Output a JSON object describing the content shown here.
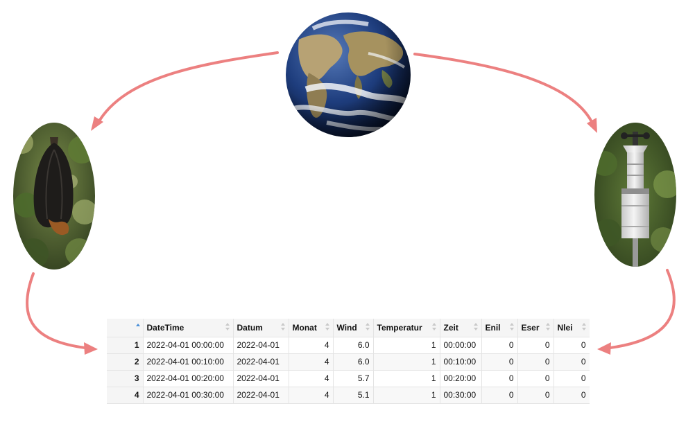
{
  "colors": {
    "arrow": "#ec8080",
    "ocean": "#1c3a78",
    "foliage": "#4b6630",
    "header_bg": "#f5f5f5",
    "grid": "#e4e4e4",
    "sort_active": "#4a90d9"
  },
  "icons": {
    "earth": "earth-globe-icon",
    "bat": "hanging-bat-photo",
    "weather_station": "weather-station-photo",
    "sort": "sort-arrows-icon"
  },
  "table": {
    "columns": [
      {
        "key": "index",
        "label": ""
      },
      {
        "key": "DateTime",
        "label": "DateTime"
      },
      {
        "key": "Datum",
        "label": "Datum"
      },
      {
        "key": "Monat",
        "label": "Monat"
      },
      {
        "key": "Wind",
        "label": "Wind"
      },
      {
        "key": "Temperatur",
        "label": "Temperatur"
      },
      {
        "key": "Zeit",
        "label": "Zeit"
      },
      {
        "key": "Enil",
        "label": "Enil"
      },
      {
        "key": "Eser",
        "label": "Eser"
      },
      {
        "key": "Nlei",
        "label": "Nlei"
      }
    ],
    "rows": [
      [
        "1",
        "2022-04-01 00:00:00",
        "2022-04-01",
        "4",
        "6.0",
        "1",
        "00:00:00",
        "0",
        "0",
        "0"
      ],
      [
        "2",
        "2022-04-01 00:10:00",
        "2022-04-01",
        "4",
        "6.0",
        "1",
        "00:10:00",
        "0",
        "0",
        "0"
      ],
      [
        "3",
        "2022-04-01 00:20:00",
        "2022-04-01",
        "4",
        "5.7",
        "1",
        "00:20:00",
        "0",
        "0",
        "0"
      ],
      [
        "4",
        "2022-04-01 00:30:00",
        "2022-04-01",
        "4",
        "5.1",
        "1",
        "00:30:00",
        "0",
        "0",
        "0"
      ]
    ]
  }
}
